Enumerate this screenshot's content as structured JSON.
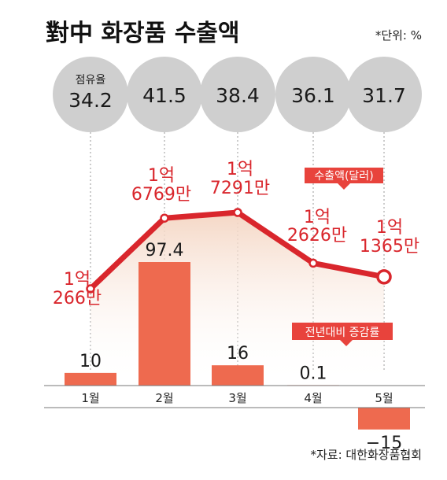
{
  "title": "對中 화장품 수출액",
  "unit_note": "*단위: %",
  "source": "*자료: 대한화장품협회",
  "share_label": "점유율",
  "export_tag": "수출액(달러)",
  "change_tag": "전년대비 증감률",
  "colors": {
    "line": "#d9262c",
    "bar": "#ee6a4f",
    "circle": "#cfcfcf",
    "tag": "#e8433c",
    "area_top": "#f4d5c2"
  },
  "chart_data": {
    "type": "bar+line",
    "categories": [
      "1월",
      "2월",
      "3월",
      "4월",
      "5월"
    ],
    "share_pct": [
      34.2,
      41.5,
      38.4,
      36.1,
      31.7
    ],
    "share_labels": [
      "34.2",
      "41.5",
      "38.4",
      "36.1",
      "31.7"
    ],
    "export_usd": [
      102660000,
      167690000,
      172910000,
      126260000,
      113650000
    ],
    "export_labels": [
      [
        "1억",
        "266만"
      ],
      [
        "1억",
        "6769만"
      ],
      [
        "1억",
        "7291만"
      ],
      [
        "1억",
        "2626만"
      ],
      [
        "1억",
        "1365만"
      ]
    ],
    "yoy_change_pct": [
      10,
      97.4,
      16,
      0.1,
      -15
    ],
    "yoy_labels": [
      "10",
      "97.4",
      "16",
      "0.1",
      "−15"
    ]
  }
}
